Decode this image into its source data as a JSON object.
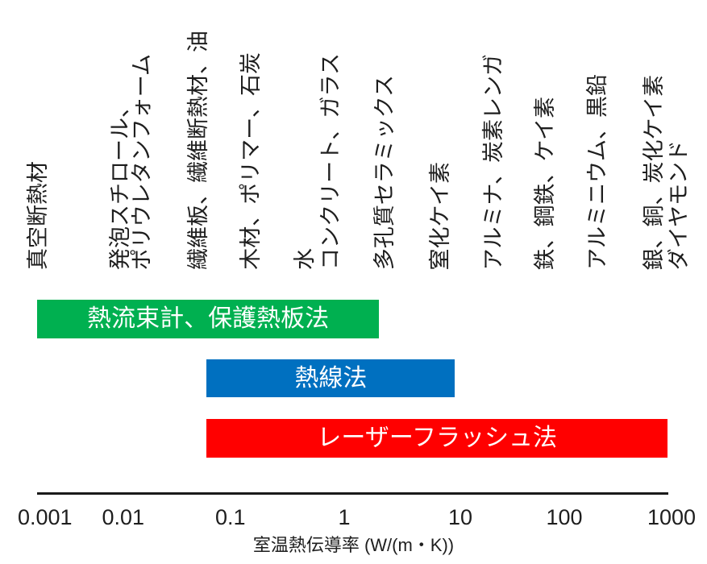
{
  "chart_data": {
    "type": "bar",
    "orientation": "horizontal",
    "xlabel": "室温熱伝導率 (W/(m・K))",
    "xscale": "log",
    "xlim": [
      0.001,
      1000
    ],
    "xticks": [
      "0.001",
      "0.01",
      "0.1",
      "1",
      "10",
      "100",
      "1000"
    ],
    "grid": false,
    "series": [
      {
        "name": "熱流束計、保護熱板法",
        "range": [
          0.001,
          2
        ],
        "color": "#00b050"
      },
      {
        "name": "熱線法",
        "range": [
          0.06,
          9
        ],
        "color": "#0070c0"
      },
      {
        "name": "レーザーフラッシュ法",
        "range": [
          0.06,
          1000
        ],
        "color": "#ff0000"
      }
    ],
    "annotations": [
      {
        "lines": [
          "真空断熱材"
        ]
      },
      {
        "lines": [
          "発泡スチロール、",
          "ポリウレタンフォーム"
        ]
      },
      {
        "lines": [
          "繊維板、繊維断熱材、油"
        ]
      },
      {
        "lines": [
          "木材、ポリマー、石炭"
        ]
      },
      {
        "lines": [
          "水",
          "コンクリート、ガラス"
        ]
      },
      {
        "lines": [
          "多孔質セラミックス"
        ]
      },
      {
        "lines": [
          "窒化ケイ素"
        ]
      },
      {
        "lines": [
          "アルミナ、炭素レンガ"
        ]
      },
      {
        "lines": [
          "鉄、鋼鉄、ケイ素"
        ]
      },
      {
        "lines": [
          "アルミニウム、黒鉛"
        ]
      },
      {
        "lines": [
          "銀、銅、炭化ケイ素",
          "ダイヤモンド"
        ]
      }
    ]
  }
}
